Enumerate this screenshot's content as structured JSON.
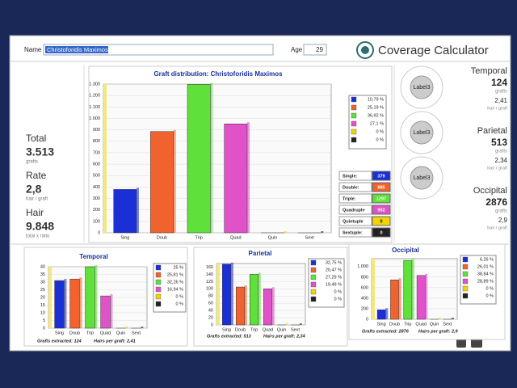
{
  "header": {
    "name_label": "Name",
    "name": "Christoforidis Maximos",
    "age_label": "Age",
    "age": 29,
    "title": "Coverage Calculator"
  },
  "summary": [
    {
      "label": "Total",
      "value": "3.513",
      "unit": "grafts"
    },
    {
      "label": "Rate",
      "value": "2,8",
      "unit": "hair / graft"
    },
    {
      "label": "Hair",
      "value": "9.848",
      "unit": "total x ratio"
    }
  ],
  "circle_labels": [
    "Label3",
    "Label3",
    "Label3"
  ],
  "regions": [
    {
      "name": "Temporal",
      "count": "124",
      "unit": "grafts",
      "rate": "2,41",
      "rate_unit": "hair / graft"
    },
    {
      "name": "Parietal",
      "count": "513",
      "unit": "grafts",
      "rate": "2,34",
      "rate_unit": "hair / graft"
    },
    {
      "name": "Occipital",
      "count": "2876",
      "unit": "grafts",
      "rate": "2,9",
      "rate_unit": "hair / graft"
    }
  ],
  "table_labels": [
    "Single:",
    "Double:",
    "Triple:",
    "Quadruple",
    "Quintuple",
    "Sextuple:"
  ],
  "chart_data": [
    {
      "type": "bar",
      "title": "Graft distribution: Christoforidis Maximos",
      "categories": [
        "Sing",
        "Doub",
        "Trip",
        "Quad",
        "Quin",
        "Sext"
      ],
      "values": [
        379,
        885,
        1297,
        952,
        0,
        0
      ],
      "colors": [
        "#1a2fd6",
        "#f0622e",
        "#5fe03a",
        "#e052c8",
        "#f2d400",
        "#222222"
      ],
      "legend_labels": [
        "10,79 %",
        "25,19 %",
        "36,92 %",
        "27,1 %",
        "0 %",
        "0 %"
      ],
      "ylim": [
        0,
        1300
      ],
      "yticks": [
        0,
        100,
        200,
        300,
        400,
        500,
        600,
        700,
        800,
        900,
        {
          "value": 1000,
          "label": "1.000"
        },
        {
          "value": 1100,
          "label": "1.100"
        },
        {
          "value": 1200,
          "label": "1.200"
        },
        {
          "value": 1300,
          "label": "1.300"
        }
      ],
      "grid": true
    },
    {
      "type": "bar",
      "title": "Temporal",
      "categories": [
        "Sing",
        "Doub",
        "Trip",
        "Quad",
        "Quin",
        "Sext"
      ],
      "values": [
        31,
        32,
        40,
        21,
        0,
        0
      ],
      "colors": [
        "#1a2fd6",
        "#f0622e",
        "#5fe03a",
        "#e052c8",
        "#f2d400",
        "#222222"
      ],
      "legend_labels": [
        "25 %",
        "25,81 %",
        "32,26 %",
        "16,94 %",
        "0 %",
        "0 %"
      ],
      "footer": [
        "Grafts extracted: 124",
        "Hairs per graft: 2,41"
      ],
      "ylim": [
        0,
        40
      ],
      "yticks": [
        0,
        5,
        10,
        15,
        20,
        25,
        30,
        35,
        40
      ],
      "grid": true
    },
    {
      "type": "bar",
      "title": "Parietal",
      "categories": [
        "Sing",
        "Doub",
        "Trip",
        "Quad",
        "Quin",
        "Sext"
      ],
      "values": [
        168,
        105,
        140,
        100,
        0,
        0
      ],
      "colors": [
        "#1a2fd6",
        "#f0622e",
        "#5fe03a",
        "#e052c8",
        "#f2d400",
        "#222222"
      ],
      "legend_labels": [
        "32,75 %",
        "20,47 %",
        "27,29 %",
        "19,49 %",
        "0 %",
        "0 %"
      ],
      "footer": [
        "Grafts extracted: 513",
        "Hairs per graft: 2,34"
      ],
      "ylim": [
        0,
        170
      ],
      "yticks": [
        0,
        20,
        40,
        60,
        80,
        100,
        120,
        140,
        160
      ],
      "grid": true
    },
    {
      "type": "bar",
      "title": "Occipital",
      "categories": [
        "Sing",
        "Doub",
        "Trip",
        "Quad",
        "Quin",
        "Sext"
      ],
      "values": [
        180,
        748,
        1117,
        831,
        0,
        0
      ],
      "colors": [
        "#1a2fd6",
        "#f0622e",
        "#5fe03a",
        "#e052c8",
        "#f2d400",
        "#222222"
      ],
      "legend_labels": [
        "6,26 %",
        "26,01 %",
        "38,84 %",
        "28,89 %",
        "0 %",
        "0 %"
      ],
      "footer": [
        "Grafts extracted: 2876",
        "Hairs per graft: 2,9"
      ],
      "ylim": [
        0,
        1150
      ],
      "yticks": [
        0,
        200,
        400,
        600,
        800,
        {
          "value": 1000,
          "label": "1.000"
        }
      ],
      "grid": true
    }
  ]
}
